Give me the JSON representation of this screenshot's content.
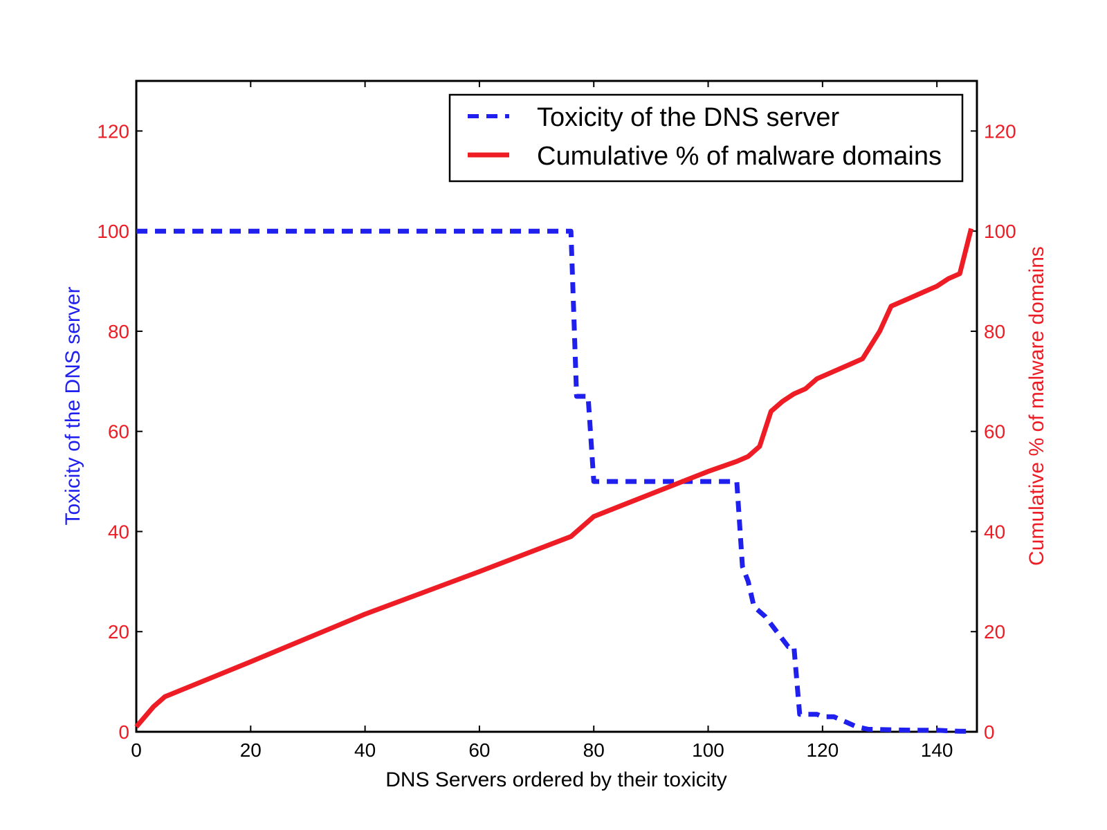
{
  "chart_data": {
    "type": "line",
    "xlabel": "DNS Servers ordered by their toxicity",
    "ylabel_left": "Toxicity of the DNS server",
    "ylabel_right": "Cumulative % of malware domains",
    "xlim": [
      0,
      147
    ],
    "ylim": [
      0,
      130
    ],
    "x_ticks": [
      "0",
      "20",
      "40",
      "60",
      "80",
      "100",
      "120",
      "140"
    ],
    "y_ticks": [
      "0",
      "20",
      "40",
      "60",
      "80",
      "100",
      "120"
    ],
    "legend_position": "top-right",
    "grid": false,
    "series": [
      {
        "name": "Toxicity of the DNS server",
        "axis": "left",
        "style": "dashed",
        "color": "#1f1fee",
        "x": [
          0,
          76,
          77,
          78,
          79,
          80,
          90,
          100,
          105,
          106,
          107,
          108,
          110,
          112,
          114,
          115,
          116,
          118,
          119,
          120,
          122,
          124,
          126,
          128,
          132,
          136,
          140,
          144,
          146
        ],
        "y": [
          100,
          100,
          67,
          67,
          67,
          50,
          50,
          50,
          50,
          33,
          30,
          25,
          23,
          20,
          17,
          17,
          3.5,
          3.5,
          3.5,
          3,
          3,
          2,
          1,
          0.5,
          0.4,
          0.3,
          0.3,
          0.1,
          0.1
        ]
      },
      {
        "name": "Cumulative % of malware domains",
        "axis": "right",
        "style": "solid",
        "color": "#ee1c25",
        "x": [
          0,
          3,
          5,
          20,
          40,
          60,
          76,
          79,
          80,
          100,
          105,
          107,
          109,
          111,
          113,
          115,
          117,
          119,
          122,
          125,
          127,
          130,
          132,
          135,
          138,
          140,
          142,
          144,
          146
        ],
        "y": [
          1,
          5,
          7,
          14,
          23.5,
          32,
          39,
          42,
          43,
          52,
          54,
          55,
          57,
          64,
          66,
          67.5,
          68.5,
          70.5,
          72,
          73.5,
          74.5,
          80,
          85,
          86.5,
          88,
          89,
          90.5,
          91.5,
          100.5
        ]
      }
    ]
  },
  "colors": {
    "left_axis": "#1f1fee",
    "right_axis": "#ee1c25",
    "tick_left": "#ee1c25",
    "tick_right": "#ee1c25",
    "tick_bottom": "#000000"
  }
}
